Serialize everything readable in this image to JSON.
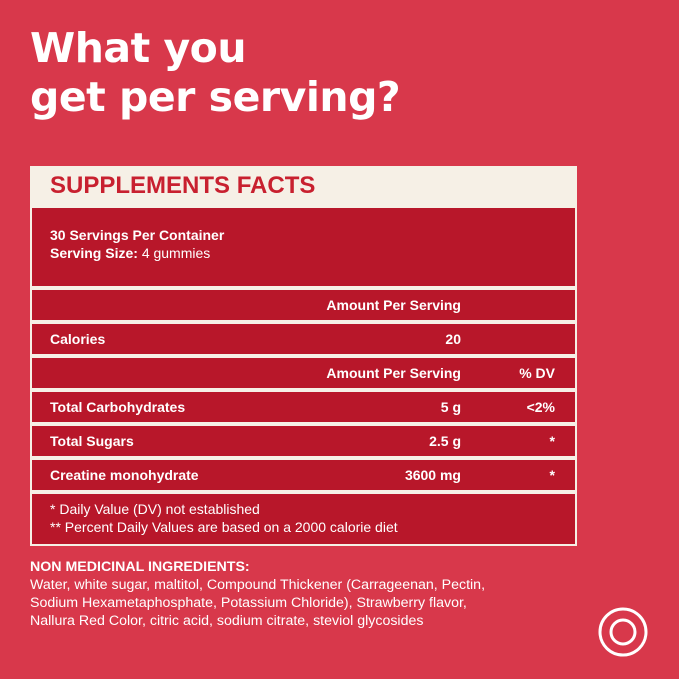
{
  "headline": {
    "line1": "What you",
    "line2": "get per serving?"
  },
  "facts": {
    "title": "SUPPLEMENTS FACTS",
    "servings_per_container": "30 Servings Per Container",
    "serving_size_label": "Serving Size:",
    "serving_size_value": "4 gummies",
    "amount_header": "Amount Per Serving",
    "calories_label": "Calories",
    "calories_value": "20",
    "amount_header_2": "Amount Per Serving",
    "dv_header": "% DV",
    "rows": [
      {
        "label": "Total Carbohydrates",
        "amount": "5 g",
        "dv": "<2%"
      },
      {
        "label": "Total Sugars",
        "amount": "2.5 g",
        "dv": "*"
      },
      {
        "label": "Creatine monohydrate",
        "amount": "3600 mg",
        "dv": "*"
      }
    ],
    "note1": "* Daily Value (DV) not established",
    "note2": "** Percent Daily Values are based on a 2000 calorie diet"
  },
  "ingredients": {
    "title": "NON MEDICINAL INGREDIENTS:",
    "line1": "Water, white sugar, maltitol, Compound Thickener (Carrageenan, Pectin,",
    "line2": "Sodium Hexametaphosphate, Potassium Chloride), Strawberry flavor,",
    "line3": "Nallura Red Color, citric acid, sodium citrate, steviol glycosides"
  },
  "colors": {
    "background": "#d8384b",
    "panel": "#b8172a",
    "cream": "#f6f0e6",
    "title_red": "#c8202f"
  },
  "icons": {
    "corner": "target-icon"
  }
}
